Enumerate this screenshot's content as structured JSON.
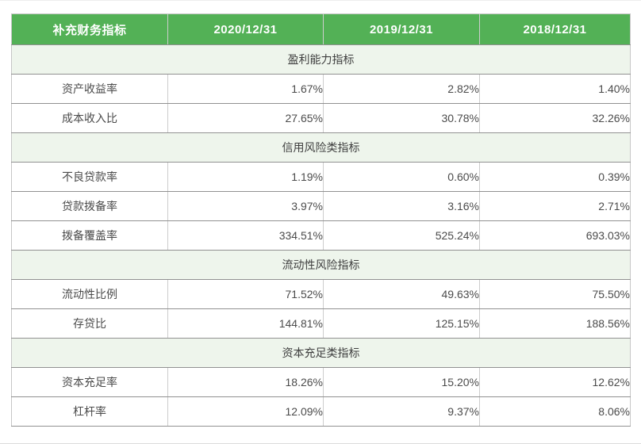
{
  "table": {
    "columns": [
      "补充财务指标",
      "2020/12/31",
      "2019/12/31",
      "2018/12/31"
    ],
    "sections": [
      {
        "title": "盈利能力指标",
        "rows": [
          {
            "label": "资产收益率",
            "values": [
              "1.67%",
              "2.82%",
              "1.40%"
            ]
          },
          {
            "label": "成本收入比",
            "values": [
              "27.65%",
              "30.78%",
              "32.26%"
            ]
          }
        ]
      },
      {
        "title": "信用风险类指标",
        "rows": [
          {
            "label": "不良贷款率",
            "values": [
              "1.19%",
              "0.60%",
              "0.39%"
            ]
          },
          {
            "label": "贷款拨备率",
            "values": [
              "3.97%",
              "3.16%",
              "2.71%"
            ]
          },
          {
            "label": "拨备覆盖率",
            "values": [
              "334.51%",
              "525.24%",
              "693.03%"
            ]
          }
        ]
      },
      {
        "title": "流动性风险指标",
        "rows": [
          {
            "label": "流动性比例",
            "values": [
              "71.52%",
              "49.63%",
              "75.50%"
            ]
          },
          {
            "label": "存贷比",
            "values": [
              "144.81%",
              "125.15%",
              "188.56%"
            ]
          }
        ]
      },
      {
        "title": "资本充足类指标",
        "rows": [
          {
            "label": "资本充足率",
            "values": [
              "18.26%",
              "15.20%",
              "12.62%"
            ]
          },
          {
            "label": "杠杆率",
            "values": [
              "12.09%",
              "9.37%",
              "8.06%"
            ]
          }
        ]
      }
    ],
    "colors": {
      "header_bg": "#53b156",
      "header_text": "#ffffff",
      "section_bg": "#eef5ec",
      "row_border": "#919191",
      "column_border": "#cdcdcd",
      "body_text": "#4b4b4b"
    }
  },
  "chart_data": {
    "type": "table",
    "title": "补充财务指标",
    "columns": [
      "补充财务指标",
      "2020/12/31",
      "2019/12/31",
      "2018/12/31"
    ],
    "groups": [
      {
        "group": "盈利能力指标",
        "rows": [
          [
            "资产收益率",
            "1.67%",
            "2.82%",
            "1.40%"
          ],
          [
            "成本收入比",
            "27.65%",
            "30.78%",
            "32.26%"
          ]
        ]
      },
      {
        "group": "信用风险类指标",
        "rows": [
          [
            "不良贷款率",
            "1.19%",
            "0.60%",
            "0.39%"
          ],
          [
            "贷款拨备率",
            "3.97%",
            "3.16%",
            "2.71%"
          ],
          [
            "拨备覆盖率",
            "334.51%",
            "525.24%",
            "693.03%"
          ]
        ]
      },
      {
        "group": "流动性风险指标",
        "rows": [
          [
            "流动性比例",
            "71.52%",
            "49.63%",
            "75.50%"
          ],
          [
            "存贷比",
            "144.81%",
            "125.15%",
            "188.56%"
          ]
        ]
      },
      {
        "group": "资本充足类指标",
        "rows": [
          [
            "资本充足率",
            "18.26%",
            "15.20%",
            "12.62%"
          ],
          [
            "杠杆率",
            "12.09%",
            "9.37%",
            "8.06%"
          ]
        ]
      }
    ]
  }
}
